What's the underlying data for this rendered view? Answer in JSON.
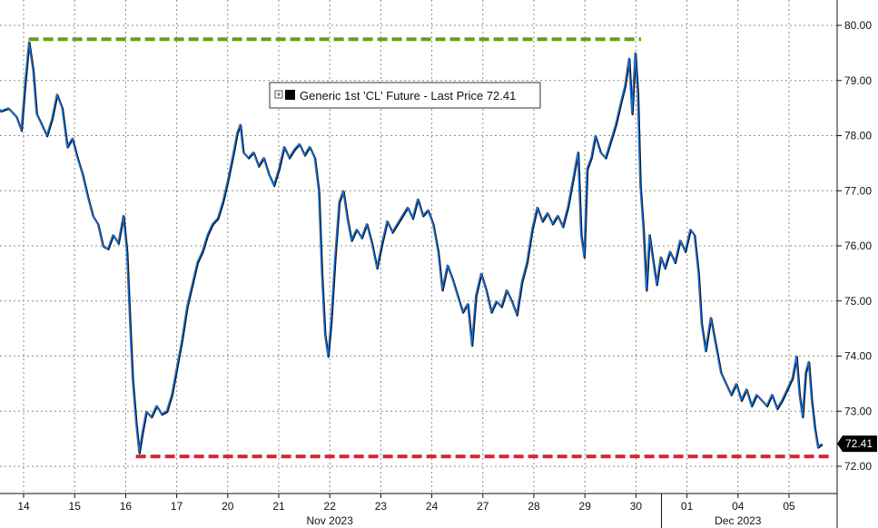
{
  "chart_data": {
    "type": "line",
    "title": "",
    "xlabel": "",
    "ylabel": "",
    "legend": {
      "label": "Generic 1st 'CL' Future - Last Price 72.41",
      "placement": "top-center"
    },
    "last_value": 72.41,
    "last_value_label": "72.41",
    "ylim": [
      71.5,
      80.4
    ],
    "y_ticks": [
      72.0,
      73.0,
      74.0,
      75.0,
      76.0,
      77.0,
      78.0,
      79.0,
      80.0
    ],
    "y_tick_labels": [
      "72.00",
      "73.00",
      "74.00",
      "75.00",
      "76.00",
      "77.00",
      "78.00",
      "79.00",
      "80.00"
    ],
    "x_ticks": [
      {
        "label": "14",
        "x": 0.6
      },
      {
        "label": "15",
        "x": 1.6
      },
      {
        "label": "16",
        "x": 2.6
      },
      {
        "label": "17",
        "x": 3.6
      },
      {
        "label": "20",
        "x": 4.6
      },
      {
        "label": "21",
        "x": 5.6
      },
      {
        "label": "22",
        "x": 6.6
      },
      {
        "label": "23",
        "x": 7.6
      },
      {
        "label": "24",
        "x": 8.6
      },
      {
        "label": "27",
        "x": 9.6
      },
      {
        "label": "28",
        "x": 10.6
      },
      {
        "label": "29",
        "x": 11.6
      },
      {
        "label": "30",
        "x": 12.6
      },
      {
        "label": "01",
        "x": 13.6
      },
      {
        "label": "04",
        "x": 14.6
      },
      {
        "label": "05",
        "x": 15.6
      }
    ],
    "x_range": [
      0,
      17.1
    ],
    "month_labels": [
      {
        "label": "Nov 2023",
        "x": 6.6
      },
      {
        "label": "Dec 2023",
        "x": 14.6
      }
    ],
    "month_divider_x": 13.1,
    "grid": true,
    "reference_lines": [
      {
        "value": 79.75,
        "x_start": 0.7,
        "x_end": 12.7,
        "color": "#6b9a1e"
      },
      {
        "value": 72.18,
        "x_start": 2.8,
        "x_end": 16.4,
        "color": "#e0232c"
      }
    ],
    "series": [
      {
        "color": "#1f6fd1",
        "points": [
          [
            0.0,
            78.6
          ],
          [
            0.15,
            78.45
          ],
          [
            0.3,
            78.5
          ],
          [
            0.45,
            78.35
          ],
          [
            0.55,
            78.1
          ],
          [
            0.62,
            78.9
          ],
          [
            0.7,
            79.7
          ],
          [
            0.78,
            79.2
          ],
          [
            0.85,
            78.4
          ],
          [
            0.95,
            78.2
          ],
          [
            1.05,
            78.0
          ],
          [
            1.15,
            78.3
          ],
          [
            1.25,
            78.75
          ],
          [
            1.35,
            78.5
          ],
          [
            1.45,
            77.8
          ],
          [
            1.55,
            77.95
          ],
          [
            1.65,
            77.6
          ],
          [
            1.75,
            77.3
          ],
          [
            1.85,
            76.9
          ],
          [
            1.95,
            76.55
          ],
          [
            2.05,
            76.4
          ],
          [
            2.15,
            76.0
          ],
          [
            2.25,
            75.95
          ],
          [
            2.35,
            76.2
          ],
          [
            2.45,
            76.05
          ],
          [
            2.55,
            76.55
          ],
          [
            2.62,
            75.9
          ],
          [
            2.68,
            74.6
          ],
          [
            2.73,
            73.6
          ],
          [
            2.8,
            72.8
          ],
          [
            2.86,
            72.25
          ],
          [
            2.92,
            72.6
          ],
          [
            3.0,
            73.0
          ],
          [
            3.1,
            72.9
          ],
          [
            3.2,
            73.1
          ],
          [
            3.3,
            72.95
          ],
          [
            3.4,
            73.0
          ],
          [
            3.5,
            73.3
          ],
          [
            3.6,
            73.8
          ],
          [
            3.7,
            74.3
          ],
          [
            3.8,
            74.9
          ],
          [
            3.9,
            75.3
          ],
          [
            4.0,
            75.7
          ],
          [
            4.1,
            75.9
          ],
          [
            4.2,
            76.2
          ],
          [
            4.3,
            76.4
          ],
          [
            4.4,
            76.5
          ],
          [
            4.5,
            76.8
          ],
          [
            4.6,
            77.2
          ],
          [
            4.7,
            77.65
          ],
          [
            4.78,
            78.05
          ],
          [
            4.84,
            78.2
          ],
          [
            4.9,
            77.7
          ],
          [
            5.0,
            77.6
          ],
          [
            5.1,
            77.7
          ],
          [
            5.2,
            77.45
          ],
          [
            5.3,
            77.6
          ],
          [
            5.4,
            77.3
          ],
          [
            5.5,
            77.1
          ],
          [
            5.6,
            77.4
          ],
          [
            5.7,
            77.8
          ],
          [
            5.8,
            77.6
          ],
          [
            5.9,
            77.75
          ],
          [
            6.0,
            77.85
          ],
          [
            6.1,
            77.65
          ],
          [
            6.2,
            77.8
          ],
          [
            6.3,
            77.6
          ],
          [
            6.38,
            77.0
          ],
          [
            6.44,
            75.5
          ],
          [
            6.5,
            74.4
          ],
          [
            6.56,
            74.0
          ],
          [
            6.62,
            74.6
          ],
          [
            6.7,
            75.8
          ],
          [
            6.78,
            76.8
          ],
          [
            6.86,
            77.0
          ],
          [
            6.94,
            76.5
          ],
          [
            7.02,
            76.1
          ],
          [
            7.12,
            76.3
          ],
          [
            7.22,
            76.15
          ],
          [
            7.32,
            76.4
          ],
          [
            7.42,
            76.05
          ],
          [
            7.52,
            75.6
          ],
          [
            7.62,
            76.05
          ],
          [
            7.72,
            76.45
          ],
          [
            7.82,
            76.25
          ],
          [
            7.92,
            76.4
          ],
          [
            8.02,
            76.55
          ],
          [
            8.12,
            76.7
          ],
          [
            8.22,
            76.5
          ],
          [
            8.32,
            76.85
          ],
          [
            8.42,
            76.55
          ],
          [
            8.52,
            76.65
          ],
          [
            8.62,
            76.4
          ],
          [
            8.72,
            75.9
          ],
          [
            8.8,
            75.2
          ],
          [
            8.9,
            75.65
          ],
          [
            9.0,
            75.4
          ],
          [
            9.1,
            75.1
          ],
          [
            9.2,
            74.8
          ],
          [
            9.3,
            74.95
          ],
          [
            9.38,
            74.2
          ],
          [
            9.46,
            75.1
          ],
          [
            9.56,
            75.5
          ],
          [
            9.66,
            75.2
          ],
          [
            9.76,
            74.8
          ],
          [
            9.86,
            75.0
          ],
          [
            9.96,
            74.9
          ],
          [
            10.06,
            75.2
          ],
          [
            10.16,
            75.0
          ],
          [
            10.26,
            74.75
          ],
          [
            10.36,
            75.35
          ],
          [
            10.46,
            75.7
          ],
          [
            10.56,
            76.3
          ],
          [
            10.66,
            76.7
          ],
          [
            10.76,
            76.45
          ],
          [
            10.86,
            76.6
          ],
          [
            10.96,
            76.4
          ],
          [
            11.06,
            76.55
          ],
          [
            11.16,
            76.35
          ],
          [
            11.26,
            76.7
          ],
          [
            11.36,
            77.2
          ],
          [
            11.46,
            77.7
          ],
          [
            11.52,
            76.2
          ],
          [
            11.58,
            75.8
          ],
          [
            11.64,
            77.4
          ],
          [
            11.72,
            77.6
          ],
          [
            11.8,
            78.0
          ],
          [
            11.9,
            77.7
          ],
          [
            12.0,
            77.6
          ],
          [
            12.1,
            77.9
          ],
          [
            12.2,
            78.2
          ],
          [
            12.3,
            78.6
          ],
          [
            12.38,
            78.9
          ],
          [
            12.46,
            79.4
          ],
          [
            12.52,
            78.4
          ],
          [
            12.58,
            79.5
          ],
          [
            12.63,
            78.8
          ],
          [
            12.68,
            77.1
          ],
          [
            12.74,
            76.3
          ],
          [
            12.8,
            75.2
          ],
          [
            12.86,
            76.2
          ],
          [
            12.92,
            75.8
          ],
          [
            13.0,
            75.3
          ],
          [
            13.08,
            75.8
          ],
          [
            13.16,
            75.6
          ],
          [
            13.26,
            75.9
          ],
          [
            13.36,
            75.7
          ],
          [
            13.46,
            76.1
          ],
          [
            13.56,
            75.9
          ],
          [
            13.66,
            76.3
          ],
          [
            13.74,
            76.2
          ],
          [
            13.82,
            75.5
          ],
          [
            13.88,
            74.6
          ],
          [
            13.96,
            74.1
          ],
          [
            14.06,
            74.7
          ],
          [
            14.16,
            74.2
          ],
          [
            14.26,
            73.7
          ],
          [
            14.36,
            73.5
          ],
          [
            14.46,
            73.3
          ],
          [
            14.56,
            73.5
          ],
          [
            14.66,
            73.2
          ],
          [
            14.76,
            73.4
          ],
          [
            14.86,
            73.1
          ],
          [
            14.96,
            73.3
          ],
          [
            15.06,
            73.2
          ],
          [
            15.16,
            73.1
          ],
          [
            15.26,
            73.3
          ],
          [
            15.36,
            73.05
          ],
          [
            15.46,
            73.2
          ],
          [
            15.56,
            73.4
          ],
          [
            15.66,
            73.6
          ],
          [
            15.74,
            74.0
          ],
          [
            15.8,
            73.3
          ],
          [
            15.86,
            72.9
          ],
          [
            15.92,
            73.7
          ],
          [
            15.98,
            73.9
          ],
          [
            16.04,
            73.2
          ],
          [
            16.1,
            72.7
          ],
          [
            16.16,
            72.35
          ],
          [
            16.24,
            72.41
          ]
        ]
      }
    ]
  }
}
